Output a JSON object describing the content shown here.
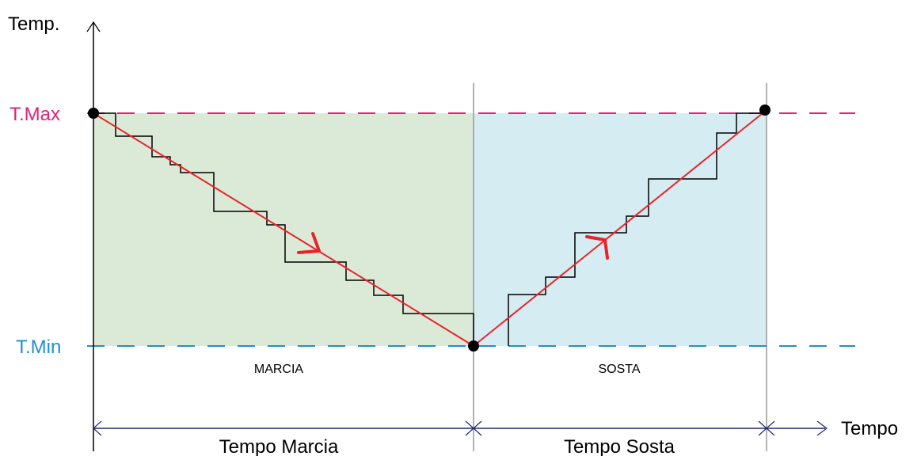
{
  "axis": {
    "y_label": "Temp.",
    "x_label": "Tempo"
  },
  "levels": {
    "max_label": "T.Max",
    "min_label": "T.Min",
    "max_color": "#e0207a",
    "min_color": "#1e90d0"
  },
  "phases": {
    "marcia_label": "MARCIA",
    "sosta_label": "SOSTA",
    "marcia_fill": "#dbe9d7",
    "sosta_fill": "#d5ecf3"
  },
  "durations": {
    "marcia_label": "Tempo Marcia",
    "sosta_label": "Tempo Sosta",
    "arrow_color": "#1f2a6e"
  },
  "ramp": {
    "color": "#e8242a",
    "direction_marcia": "decreasing",
    "direction_sosta": "increasing"
  },
  "staircase": {
    "color": "#000000"
  }
}
